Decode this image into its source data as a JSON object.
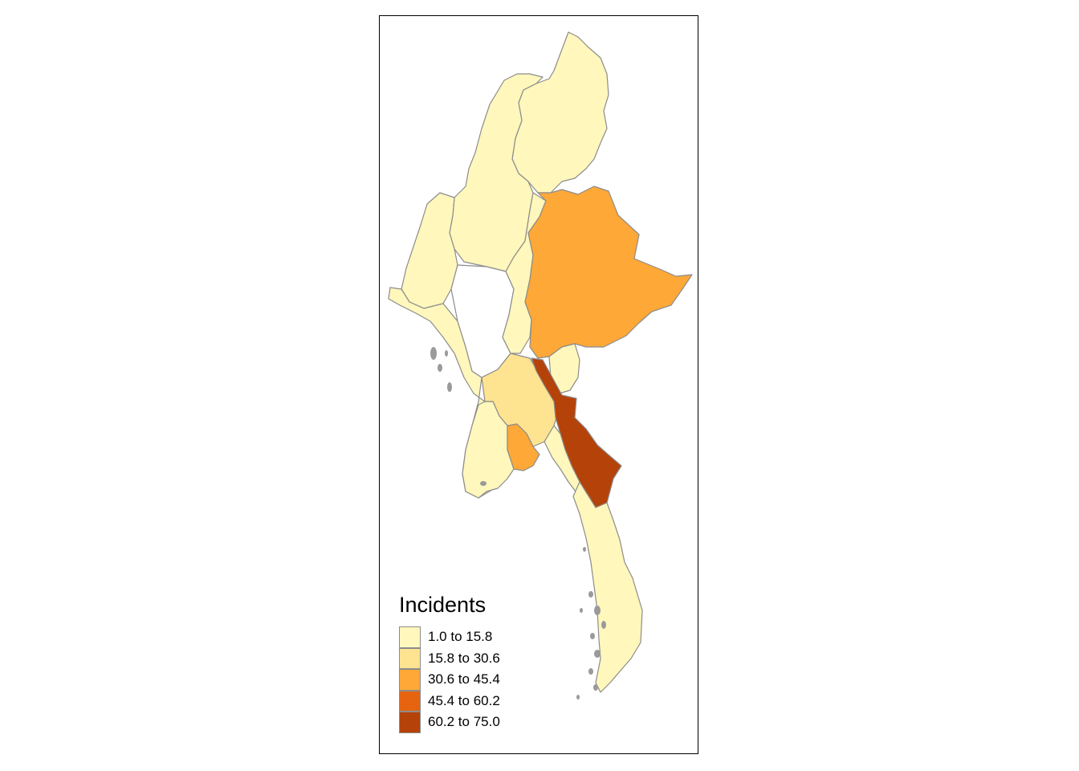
{
  "legend": {
    "title": "Incidents",
    "classes": [
      {
        "label": "1.0 to 15.8",
        "color": "#fff7bc"
      },
      {
        "label": "15.8 to 30.6",
        "color": "#fee391"
      },
      {
        "label": "30.6 to 45.4",
        "color": "#fea837"
      },
      {
        "label": "45.4 to 60.2",
        "color": "#e66410"
      },
      {
        "label": "60.2 to 75.0",
        "color": "#b54208"
      }
    ]
  },
  "colors": {
    "no_data": "#ffffff",
    "border": "#8c8c8c",
    "frame": "#000000"
  }
}
